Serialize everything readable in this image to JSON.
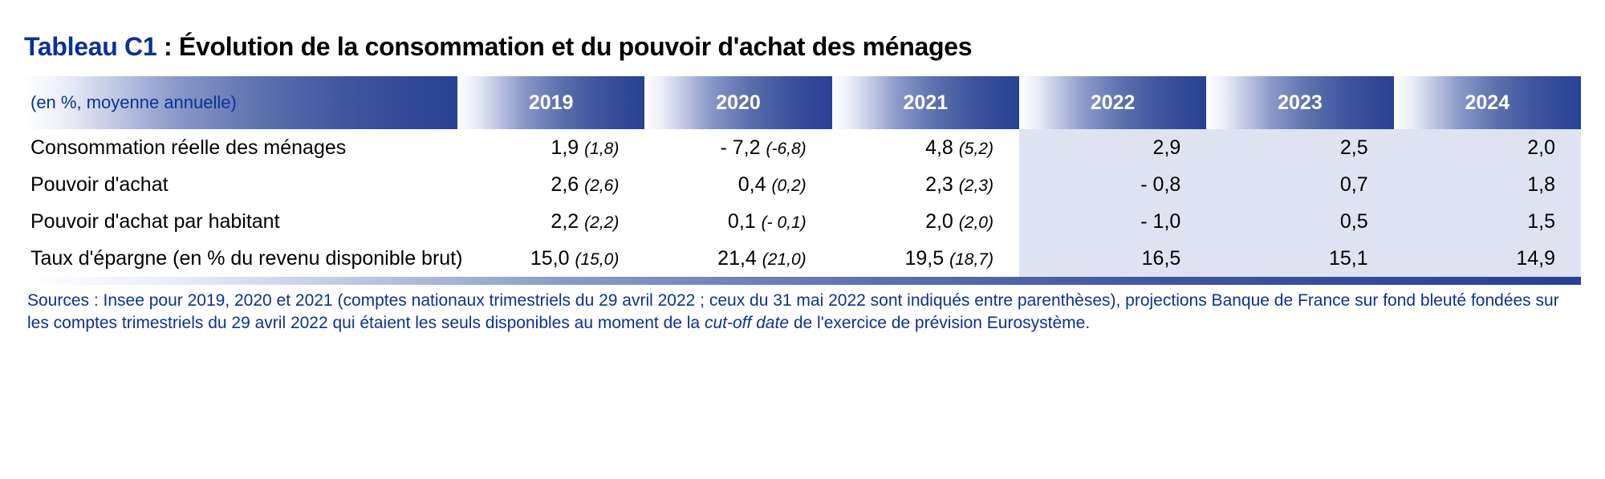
{
  "title": {
    "code": "Tableau C1",
    "sep": " : ",
    "text": "Évolution de la consommation et du pouvoir d'achat des ménages"
  },
  "header": {
    "subtitle": "(en %, moyenne annuelle)",
    "years": [
      "2019",
      "2020",
      "2021",
      "2022",
      "2023",
      "2024"
    ]
  },
  "columns": {
    "projection_start_index": 3
  },
  "rows": [
    {
      "label": "Consommation réelle des ménages",
      "cells": [
        {
          "v": "1,9",
          "p": "(1,8)"
        },
        {
          "v": "- 7,2",
          "p": "(-6,8)"
        },
        {
          "v": "4,8",
          "p": "(5,2)"
        },
        {
          "v": "2,9"
        },
        {
          "v": "2,5"
        },
        {
          "v": "2,0"
        }
      ]
    },
    {
      "label": "Pouvoir d'achat",
      "cells": [
        {
          "v": "2,6",
          "p": "(2,6)"
        },
        {
          "v": "0,4",
          "p": "(0,2)"
        },
        {
          "v": "2,3",
          "p": "(2,3)"
        },
        {
          "v": "- 0,8"
        },
        {
          "v": "0,7"
        },
        {
          "v": "1,8"
        }
      ]
    },
    {
      "label": "Pouvoir d'achat par habitant",
      "cells": [
        {
          "v": "2,2",
          "p": "(2,2)"
        },
        {
          "v": "0,1",
          "p": "(- 0,1)"
        },
        {
          "v": "2,0",
          "p": "(2,0)"
        },
        {
          "v": "- 1,0"
        },
        {
          "v": "0,5"
        },
        {
          "v": "1,5"
        }
      ]
    },
    {
      "label": "Taux d'épargne (en % du revenu disponible brut)",
      "cells": [
        {
          "v": "15,0",
          "p": "(15,0)"
        },
        {
          "v": "21,4",
          "p": "(21,0)"
        },
        {
          "v": "19,5",
          "p": "(18,7)"
        },
        {
          "v": "16,5"
        },
        {
          "v": "15,1"
        },
        {
          "v": "14,9"
        }
      ]
    }
  ],
  "sources": {
    "pre": "Sources : Insee pour 2019, 2020 et 2021 (comptes nationaux trimestriels du 29 avril 2022 ; ceux du 31 mai 2022 sont indiqués entre parenthèses), projections Banque de France sur fond bleuté fondées sur les comptes trimestriels du 29 avril 2022 qui étaient les seuls disponibles au moment de la ",
    "italic": "cut-off date",
    "post": " de l'exercice de prévision Eurosystème."
  },
  "style": {
    "title_fontsize": 32,
    "header_year_fontsize": 25,
    "header_sub_fontsize": 22,
    "body_fontsize": 25,
    "paren_fontsize": 21,
    "sources_fontsize": 21,
    "colors": {
      "accent": "#0a3294",
      "text": "#000000",
      "header_gradient": [
        "#ffffff",
        "#e9ecf7",
        "#8a99c9",
        "#5c70ad",
        "#3e549e",
        "#274193"
      ],
      "projection_bg": "#dfe3f1",
      "white": "#ffffff"
    }
  }
}
